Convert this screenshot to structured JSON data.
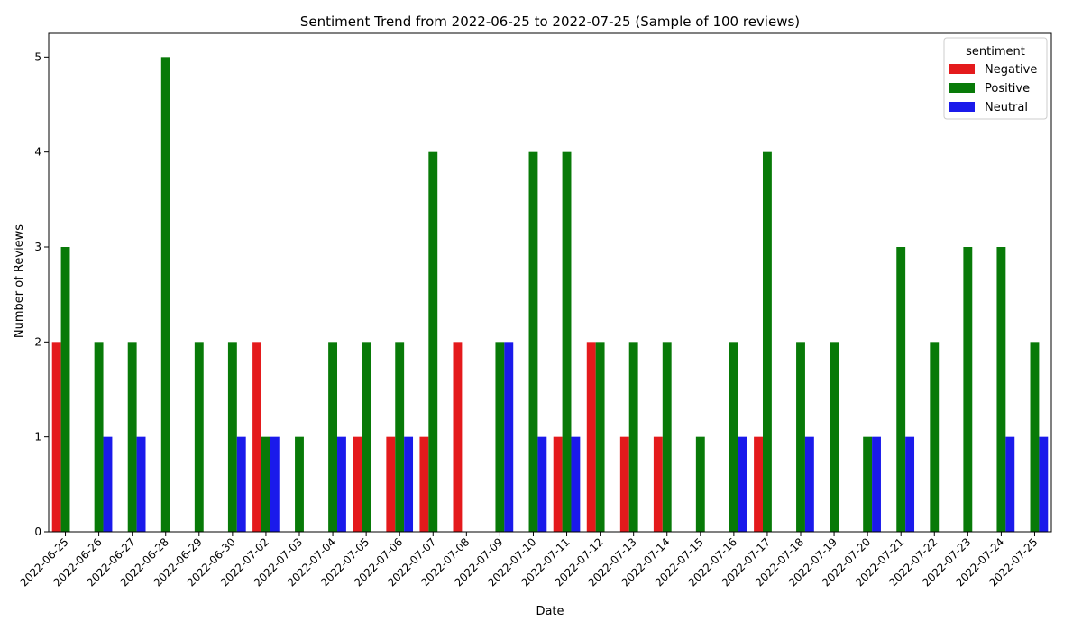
{
  "chart_data": {
    "type": "bar",
    "title": "Sentiment Trend from 2022-06-25 to 2022-07-25 (Sample of 100 reviews)",
    "xlabel": "Date",
    "ylabel": "Number of Reviews",
    "ylim": [
      0,
      5.25
    ],
    "yticks": [
      "0",
      "1",
      "2",
      "3",
      "4",
      "5"
    ],
    "grid": false,
    "legend": {
      "title": "sentiment",
      "position": "top-right"
    },
    "categories": [
      "2022-06-25",
      "2022-06-26",
      "2022-06-27",
      "2022-06-28",
      "2022-06-29",
      "2022-06-30",
      "2022-07-02",
      "2022-07-03",
      "2022-07-04",
      "2022-07-05",
      "2022-07-06",
      "2022-07-07",
      "2022-07-08",
      "2022-07-09",
      "2022-07-10",
      "2022-07-11",
      "2022-07-12",
      "2022-07-13",
      "2022-07-14",
      "2022-07-15",
      "2022-07-16",
      "2022-07-17",
      "2022-07-18",
      "2022-07-19",
      "2022-07-20",
      "2022-07-21",
      "2022-07-22",
      "2022-07-23",
      "2022-07-24",
      "2022-07-25"
    ],
    "series": [
      {
        "name": "Negative",
        "color": "#e41a1c",
        "values": [
          2,
          0,
          0,
          0,
          0,
          0,
          2,
          0,
          0,
          1,
          1,
          1,
          2,
          0,
          0,
          1,
          2,
          1,
          1,
          0,
          0,
          1,
          0,
          0,
          0,
          0,
          0,
          0,
          0,
          0
        ]
      },
      {
        "name": "Positive",
        "color": "#087a08",
        "values": [
          3,
          2,
          2,
          5,
          2,
          2,
          1,
          1,
          2,
          2,
          2,
          4,
          0,
          2,
          4,
          4,
          2,
          2,
          2,
          1,
          2,
          4,
          2,
          2,
          1,
          3,
          2,
          3,
          3,
          2
        ]
      },
      {
        "name": "Neutral",
        "color": "#1a1aeb",
        "values": [
          0,
          1,
          1,
          0,
          0,
          1,
          1,
          0,
          1,
          0,
          1,
          0,
          0,
          2,
          1,
          1,
          0,
          0,
          0,
          0,
          1,
          0,
          1,
          0,
          1,
          1,
          0,
          0,
          1,
          1
        ]
      }
    ]
  }
}
